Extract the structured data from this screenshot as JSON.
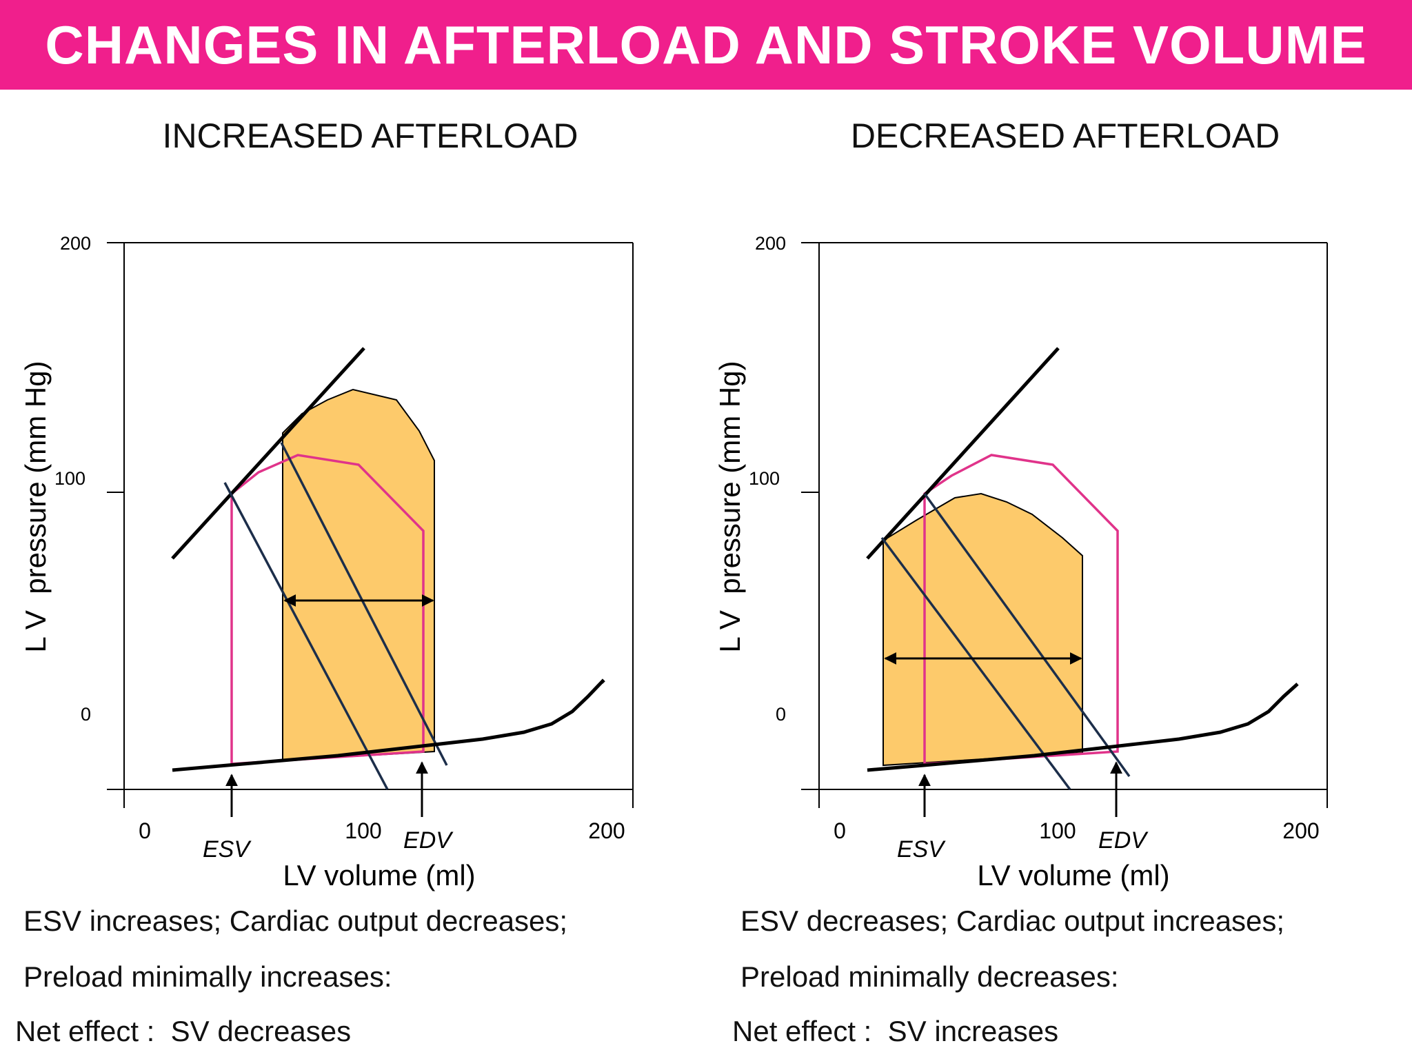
{
  "header": {
    "title": "CHANGES IN AFTERLOAD AND STROKE VOLUME"
  },
  "colors": {
    "banner": "#f01f8c",
    "baseline_loop": "#e0338a",
    "new_loop_fill": "#fdca6b",
    "elastance_line": "#1c2e4a",
    "curve": "#000000"
  },
  "chart_data": [
    {
      "type": "pressure-volume loop",
      "title": "INCREASED AFTERLOAD",
      "xlabel": "LV volume (ml)",
      "ylabel": "L V  pressure (mm Hg)",
      "xticks": [
        "0",
        "100",
        "200"
      ],
      "yticks": [
        "200",
        "100",
        "0"
      ],
      "markers": [
        "ESV",
        "EDV"
      ],
      "note_lines": [
        "ESV increases; Cardiac output decreases;",
        "Preload minimally increases:",
        "Net effect :  SV decreases"
      ]
    },
    {
      "type": "pressure-volume loop",
      "title": "DECREASED AFTERLOAD",
      "xlabel": "LV volume (ml)",
      "ylabel": "L V  pressure (mm Hg)",
      "xticks": [
        "0",
        "100",
        "200"
      ],
      "yticks": [
        "200",
        "100",
        "0"
      ],
      "markers": [
        "ESV",
        "EDV"
      ],
      "note_lines": [
        "ESV decreases; Cardiac output increases;",
        "Preload minimally decreases:",
        "Net effect :  SV increases"
      ]
    }
  ]
}
